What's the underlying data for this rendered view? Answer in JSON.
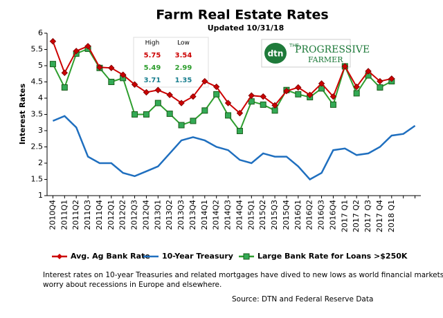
{
  "chart_data": {
    "type": "line",
    "title": "Farm Real Estate Rates",
    "subtitle": "Updated  10/31/18",
    "y_label": "Interest Rates",
    "categories": [
      "2010Q4",
      "2011Q1",
      "2011Q2",
      "2011Q3",
      "2011Q4",
      "2012Q1",
      "2012Q2",
      "2012Q3",
      "2012Q4",
      "2013Q1",
      "2013Q2",
      "2013Q3",
      "2013Q4",
      "2014Q1",
      "2014Q2",
      "2014Q3",
      "2014Q4",
      "2015Q1",
      "2015Q2",
      "2015Q3",
      "2015Q4",
      "2016Q1",
      "2016Q2",
      "2016Q3",
      "2016Q4",
      "2017 Q1",
      "2017 Q2",
      "2017 Q3",
      "2017 Q4",
      "2018 Q1",
      null,
      null
    ],
    "series": [
      {
        "name": "Avg. Ag Bank Rate",
        "color": "#cc0000",
        "marker": "diamond",
        "values": [
          5.75,
          4.78,
          5.45,
          5.6,
          4.95,
          4.93,
          4.72,
          4.42,
          4.18,
          4.25,
          4.1,
          3.85,
          4.05,
          4.52,
          4.35,
          3.85,
          3.54,
          4.08,
          4.05,
          3.78,
          4.22,
          4.33,
          4.1,
          4.45,
          4.05,
          4.98,
          4.35,
          4.83,
          4.52,
          4.6,
          null,
          null
        ]
      },
      {
        "name": "10-Year Treasury",
        "color": "#1f6fbf",
        "marker": "none",
        "values": [
          3.3,
          3.45,
          3.1,
          2.2,
          2.0,
          2.0,
          1.7,
          1.6,
          1.75,
          1.9,
          2.3,
          2.7,
          2.8,
          2.7,
          2.5,
          2.4,
          2.1,
          2.0,
          2.3,
          2.2,
          2.2,
          1.9,
          1.5,
          1.7,
          2.4,
          2.45,
          2.25,
          2.3,
          2.5,
          2.85,
          2.9,
          3.15
        ]
      },
      {
        "name": "Large Bank Rate for Loans >$250K",
        "color": "#2e9e2e",
        "marker": "square",
        "values": [
          5.05,
          4.33,
          5.37,
          5.52,
          4.93,
          4.5,
          4.62,
          3.5,
          3.5,
          3.85,
          3.52,
          3.17,
          3.3,
          3.62,
          4.12,
          3.47,
          2.99,
          3.9,
          3.8,
          3.62,
          4.25,
          4.12,
          4.03,
          4.3,
          3.8,
          4.98,
          4.15,
          4.7,
          4.33,
          4.52,
          null,
          null
        ]
      }
    ],
    "ylim": [
      1,
      6
    ],
    "yticks": [
      1,
      1.5,
      2,
      2.5,
      3,
      3.5,
      4,
      4.5,
      5,
      5.5,
      6
    ],
    "grid": false,
    "legend": "bottom",
    "inset": {
      "headers": [
        "High",
        "Low"
      ],
      "rows": [
        {
          "color": "#cc0000",
          "values": [
            5.75,
            3.54
          ]
        },
        {
          "color": "#2e9e2e",
          "values": [
            5.49,
            2.99
          ]
        },
        {
          "color": "#1a7f8f",
          "values": [
            3.71,
            1.35
          ]
        }
      ]
    },
    "logo": {
      "mark": "dtn",
      "small": "THE",
      "big": "PROGRESSIVE",
      "sub": "FARMER"
    },
    "caption": [
      "Interest rates on 10-year Treasuries and related mortgages have dived to new lows as world financial markets",
      "worry about recessions in Europe and elsewhere."
    ],
    "source": "Source: DTN  and Federal Reserve Data"
  }
}
